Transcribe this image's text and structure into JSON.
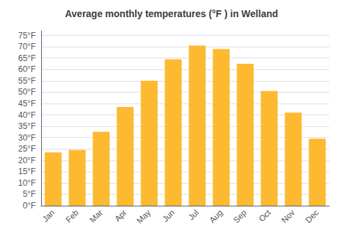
{
  "chart_data": {
    "type": "bar",
    "title": "Average monthly temperatures (°F ) in Welland",
    "categories": [
      "Jan",
      "Feb",
      "Mar",
      "Apr",
      "May",
      "Jun",
      "Jul",
      "Aug",
      "Sep",
      "Oct",
      "Nov",
      "Dec"
    ],
    "values": [
      23.5,
      24.5,
      32.5,
      43.5,
      55.0,
      64.5,
      70.5,
      69.0,
      62.5,
      50.5,
      41.0,
      29.5
    ],
    "color": "#FDB930",
    "ylim": [
      0,
      77
    ],
    "yticks": [
      {
        "value": 0,
        "label": "0°F"
      },
      {
        "value": 5,
        "label": "5°F"
      },
      {
        "value": 10,
        "label": "10°F"
      },
      {
        "value": 15,
        "label": "15°F"
      },
      {
        "value": 20,
        "label": "20°F"
      },
      {
        "value": 25,
        "label": "25°F"
      },
      {
        "value": 30,
        "label": "30°F"
      },
      {
        "value": 35,
        "label": "35°F"
      },
      {
        "value": 40,
        "label": "40°F"
      },
      {
        "value": 45,
        "label": "45°F"
      },
      {
        "value": 50,
        "label": "50°F"
      },
      {
        "value": 55,
        "label": "55°F"
      },
      {
        "value": 60,
        "label": "60°F"
      },
      {
        "value": 65,
        "label": "65°F"
      },
      {
        "value": 70,
        "label": "70°F"
      },
      {
        "value": 75,
        "label": "75°F"
      }
    ],
    "grid": true
  }
}
